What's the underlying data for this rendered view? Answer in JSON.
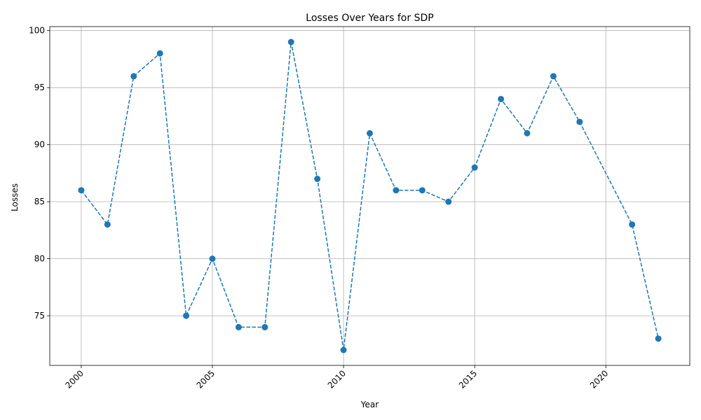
{
  "chart_data": {
    "type": "line",
    "title": "Losses Over Years for SDP",
    "xlabel": "Year",
    "ylabel": "Losses",
    "xlim": [
      1998.8,
      2023.2
    ],
    "ylim": [
      70.65,
      100.35
    ],
    "x_ticks": [
      2000,
      2005,
      2010,
      2015,
      2020
    ],
    "x_tick_labels": [
      "2000",
      "2005",
      "2010",
      "2015",
      "2020"
    ],
    "y_ticks": [
      75,
      80,
      85,
      90,
      95,
      100
    ],
    "y_tick_labels": [
      "75",
      "80",
      "85",
      "90",
      "95",
      "100"
    ],
    "grid": true,
    "line_style": "dashed",
    "marker": "circle",
    "color": "#1f77b4",
    "series": [
      {
        "x": [
          2000,
          2001,
          2002,
          2003,
          2004,
          2005,
          2006,
          2007,
          2008,
          2009,
          2010,
          2011,
          2012,
          2013,
          2014,
          2015,
          2016,
          2017,
          2018,
          2019,
          2021,
          2022
        ],
        "values": [
          86,
          83,
          96,
          98,
          75,
          80,
          74,
          74,
          99,
          87,
          72,
          91,
          86,
          86,
          85,
          88,
          94,
          91,
          96,
          92,
          83,
          73
        ]
      }
    ]
  }
}
